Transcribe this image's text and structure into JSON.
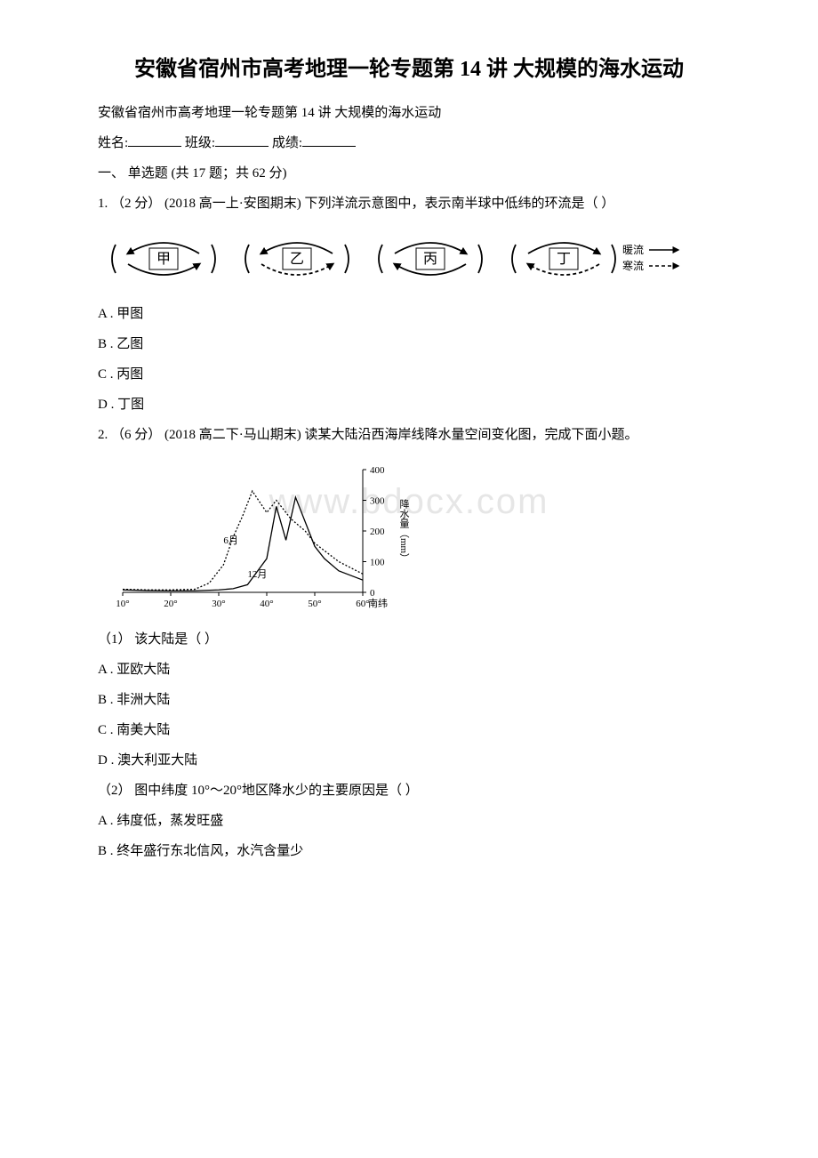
{
  "watermark": "www.bdocx.com",
  "title": "安徽省宿州市高考地理一轮专题第 14 讲 大规模的海水运动",
  "subtitle": "安徽省宿州市高考地理一轮专题第 14 讲 大规模的海水运动",
  "student_line": {
    "name_label": "姓名:",
    "class_label": "班级:",
    "score_label": "成绩:"
  },
  "section_header": "一、 单选题 (共 17 题；共 62 分)",
  "q1": {
    "stem": "1. （2 分） (2018 高一上·安图期末) 下列洋流示意图中，表示南半球中低纬的环流是（ ）",
    "options": {
      "A": "A . 甲图",
      "B": "B . 乙图",
      "C": "C . 丙图",
      "D": "D . 丁图"
    },
    "gyres": {
      "labels": [
        "甲",
        "乙",
        "丙",
        "丁"
      ],
      "legend_warm": "暖流",
      "legend_cold": "寒流",
      "stroke": "#000000",
      "stroke_width": 1.8,
      "box_stroke": "#000000",
      "font_size": 16
    }
  },
  "q2": {
    "stem": "2. （6 分） (2018 高二下·马山期末) 读某大陆沿西海岸线降水量空间变化图，完成下面小题。",
    "sub1": "（1） 该大陆是（ ）",
    "options1": {
      "A": "A . 亚欧大陆",
      "B": "B . 非洲大陆",
      "C": "C . 南美大陆",
      "D": "D . 澳大利亚大陆"
    },
    "sub2": "（2） 图中纬度 10°～20°地区降水少的主要原因是（ ）",
    "options2": {
      "A": "A . 纬度低，蒸发旺盛",
      "B": "B . 终年盛行东北信风，水汽含量少"
    },
    "chart": {
      "type": "line",
      "series": [
        {
          "name": "6月",
          "dash": "2,2",
          "color": "#000000",
          "points_x": [
            10,
            15,
            20,
            25,
            28,
            31,
            33,
            35,
            37,
            40,
            42,
            45,
            48,
            50,
            55,
            60
          ],
          "points_y": [
            10,
            8,
            8,
            10,
            30,
            90,
            180,
            250,
            330,
            260,
            300,
            240,
            200,
            160,
            100,
            60
          ]
        },
        {
          "name": "12月",
          "dash": "none",
          "color": "#000000",
          "points_x": [
            10,
            15,
            20,
            25,
            30,
            33,
            36,
            40,
            42,
            44,
            46,
            48,
            50,
            52,
            55,
            60
          ],
          "points_y": [
            8,
            6,
            5,
            5,
            8,
            12,
            25,
            110,
            280,
            170,
            310,
            230,
            150,
            110,
            70,
            40
          ]
        }
      ],
      "x_ticks": [
        10,
        20,
        30,
        40,
        50,
        60
      ],
      "x_labels": [
        "10°",
        "20°",
        "30°",
        "40°",
        "50°",
        "60°"
      ],
      "x_suffix": "南纬",
      "y_ticks": [
        0,
        100,
        200,
        300,
        400
      ],
      "y_label": "降水量（mm）",
      "ylim": [
        0,
        400
      ],
      "xlim": [
        10,
        60
      ],
      "label_6": "6月",
      "label_12": "12月",
      "background": "#ffffff",
      "axis_color": "#000000",
      "font_size": 11
    }
  }
}
